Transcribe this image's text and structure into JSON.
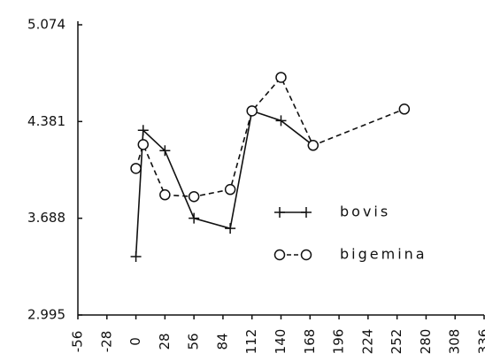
{
  "chart_data": {
    "type": "line",
    "xlim": [
      -56,
      336
    ],
    "xticks": [
      -56,
      -28,
      0,
      28,
      56,
      84,
      112,
      140,
      168,
      196,
      224,
      252,
      280,
      308,
      336
    ],
    "ylim": [
      2.995,
      5.074
    ],
    "yticks": [
      2.995,
      3.688,
      4.381,
      5.074
    ],
    "series": [
      {
        "name": "bovis",
        "color": "#111111",
        "dash": "solid",
        "marker": "plus",
        "x": [
          0,
          7,
          28,
          56,
          91,
          112,
          140,
          171
        ],
        "values": [
          3.413,
          4.318,
          4.172,
          3.688,
          3.615,
          4.457,
          4.387,
          4.21
        ]
      },
      {
        "name": "bigemina",
        "color": "#111111",
        "dash": "dashed",
        "marker": "circle",
        "x": [
          0,
          7,
          28,
          56,
          91,
          112,
          140,
          171,
          259
        ],
        "values": [
          4.045,
          4.216,
          3.856,
          3.843,
          3.894,
          4.457,
          4.697,
          4.21,
          4.47
        ]
      }
    ]
  }
}
